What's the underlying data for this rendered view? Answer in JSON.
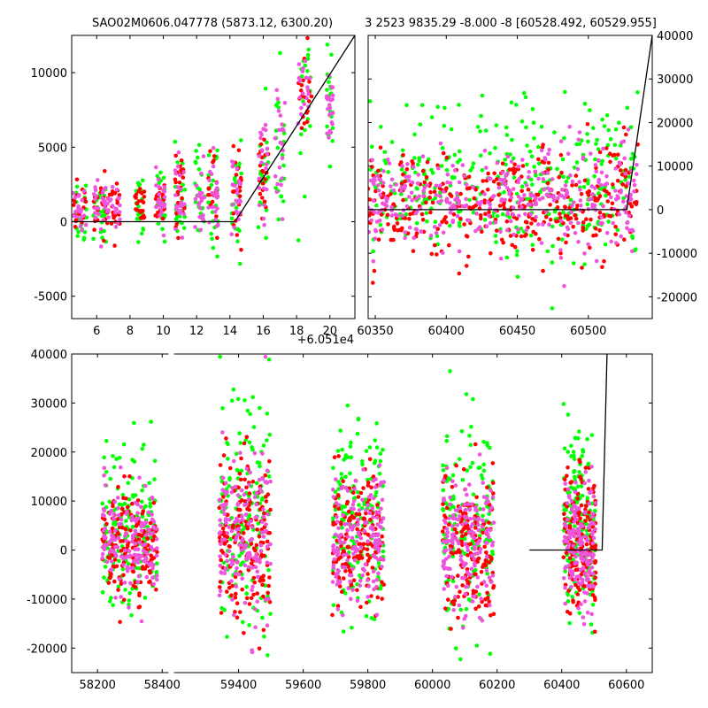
{
  "colors": {
    "red": "#ff0000",
    "green": "#00ff00",
    "magenta": "#ee55dd",
    "line": "#000000",
    "axes": "#000000"
  },
  "chart_data": [
    {
      "id": "top-left",
      "type": "scatter",
      "title": "SAO02M0606.047778 (5873.12, 6300.20)",
      "xlim": [
        4.5,
        21.5
      ],
      "ylim": [
        -6500,
        12500
      ],
      "x_ticks": [
        6,
        8,
        10,
        12,
        14,
        16,
        18,
        20
      ],
      "y_ticks": [
        -5000,
        0,
        5000,
        10000
      ],
      "y_tick_side": "left",
      "x_offset_label": "+6.051e4",
      "model_line": {
        "x": [
          4.5,
          14.3,
          21.5
        ],
        "y": [
          0,
          0,
          12500
        ]
      },
      "clusters": [
        {
          "x": 5.0,
          "spread": 0.4,
          "series": [
            "red",
            "green",
            "magenta"
          ],
          "ymed": 800,
          "ysd": 900
        },
        {
          "x": 6.2,
          "spread": 0.4,
          "series": [
            "red",
            "green",
            "magenta"
          ],
          "ymed": 900,
          "ysd": 900
        },
        {
          "x": 7.0,
          "spread": 0.4,
          "series": [
            "red",
            "magenta"
          ],
          "ymed": 1000,
          "ysd": 900
        },
        {
          "x": 8.6,
          "spread": 0.3,
          "series": [
            "red",
            "green"
          ],
          "ymed": 1000,
          "ysd": 700
        },
        {
          "x": 9.8,
          "spread": 0.3,
          "series": [
            "red",
            "green",
            "magenta"
          ],
          "ymed": 1200,
          "ysd": 800
        },
        {
          "x": 11.0,
          "spread": 0.3,
          "series": [
            "red",
            "green",
            "magenta"
          ],
          "ymed": 1800,
          "ysd": 1200
        },
        {
          "x": 12.2,
          "spread": 0.3,
          "series": [
            "green",
            "magenta"
          ],
          "ymed": 1500,
          "ysd": 1200
        },
        {
          "x": 13.0,
          "spread": 0.3,
          "series": [
            "red",
            "green",
            "magenta"
          ],
          "ymed": 1700,
          "ysd": 1300
        },
        {
          "x": 14.4,
          "spread": 0.3,
          "series": [
            "red",
            "green",
            "magenta"
          ],
          "ymed": 1700,
          "ysd": 1400
        },
        {
          "x": 16.0,
          "spread": 0.3,
          "series": [
            "red",
            "green",
            "magenta"
          ],
          "ymed": 3500,
          "ysd": 1800
        },
        {
          "x": 17.0,
          "spread": 0.3,
          "series": [
            "green",
            "magenta"
          ],
          "ymed": 5500,
          "ysd": 2200
        },
        {
          "x": 18.5,
          "spread": 0.4,
          "series": [
            "red",
            "green",
            "magenta"
          ],
          "ymed": 8500,
          "ysd": 2000
        },
        {
          "x": 20.0,
          "spread": 0.2,
          "series": [
            "green",
            "magenta"
          ],
          "ymed": 8000,
          "ysd": 1200
        }
      ]
    },
    {
      "id": "top-right",
      "type": "scatter",
      "title": "3 2523 9835.29 -8.000 -8 [60528.492, 60529.955]",
      "xlim": [
        60345,
        60545
      ],
      "ylim": [
        -25000,
        40000
      ],
      "x_ticks": [
        60350,
        60400,
        60450,
        60500
      ],
      "y_ticks": [
        -20000,
        -10000,
        0,
        10000,
        20000,
        30000,
        40000
      ],
      "y_tick_side": "right",
      "model_line": {
        "x": [
          60345,
          60527,
          60545
        ],
        "y": [
          0,
          0,
          40000
        ]
      },
      "clusters": [
        {
          "x": 60395,
          "spread": 50,
          "series": [
            "red",
            "green",
            "magenta"
          ],
          "ymed": 1500,
          "ysd": 5500
        },
        {
          "x": 60490,
          "spread": 45,
          "series": [
            "red",
            "green",
            "magenta"
          ],
          "ymed": 2000,
          "ysd": 6500
        }
      ]
    },
    {
      "id": "bottom",
      "type": "scatter",
      "title": "",
      "xlim": [
        58120,
        60680
      ],
      "ylim": [
        -25000,
        40000
      ],
      "x_ticks": [
        58200,
        58400,
        59400,
        59600,
        59800,
        60000,
        60200,
        60400,
        60600
      ],
      "y_ticks": [
        -20000,
        -10000,
        0,
        10000,
        20000,
        30000,
        40000
      ],
      "y_tick_side": "left",
      "axis_break": {
        "from": 58420,
        "to": 59200,
        "gap": 6
      },
      "model_line": {
        "x": [
          60300,
          60525,
          60540
        ],
        "y": [
          0,
          0,
          40000
        ]
      },
      "clusters": [
        {
          "x": 58300,
          "spread": 85,
          "series": [
            "red",
            "green",
            "magenta"
          ],
          "ymed": 1500,
          "ysd": 5500
        },
        {
          "x": 59420,
          "spread": 80,
          "series": [
            "red",
            "green",
            "magenta"
          ],
          "ymed": 3000,
          "ysd": 8500
        },
        {
          "x": 59770,
          "spread": 80,
          "series": [
            "red",
            "green",
            "magenta"
          ],
          "ymed": 1500,
          "ysd": 6500
        },
        {
          "x": 60110,
          "spread": 80,
          "series": [
            "red",
            "green",
            "magenta"
          ],
          "ymed": 1500,
          "ysd": 7000
        },
        {
          "x": 60455,
          "spread": 50,
          "series": [
            "red",
            "green",
            "magenta"
          ],
          "ymed": 1500,
          "ysd": 6500
        }
      ]
    }
  ]
}
